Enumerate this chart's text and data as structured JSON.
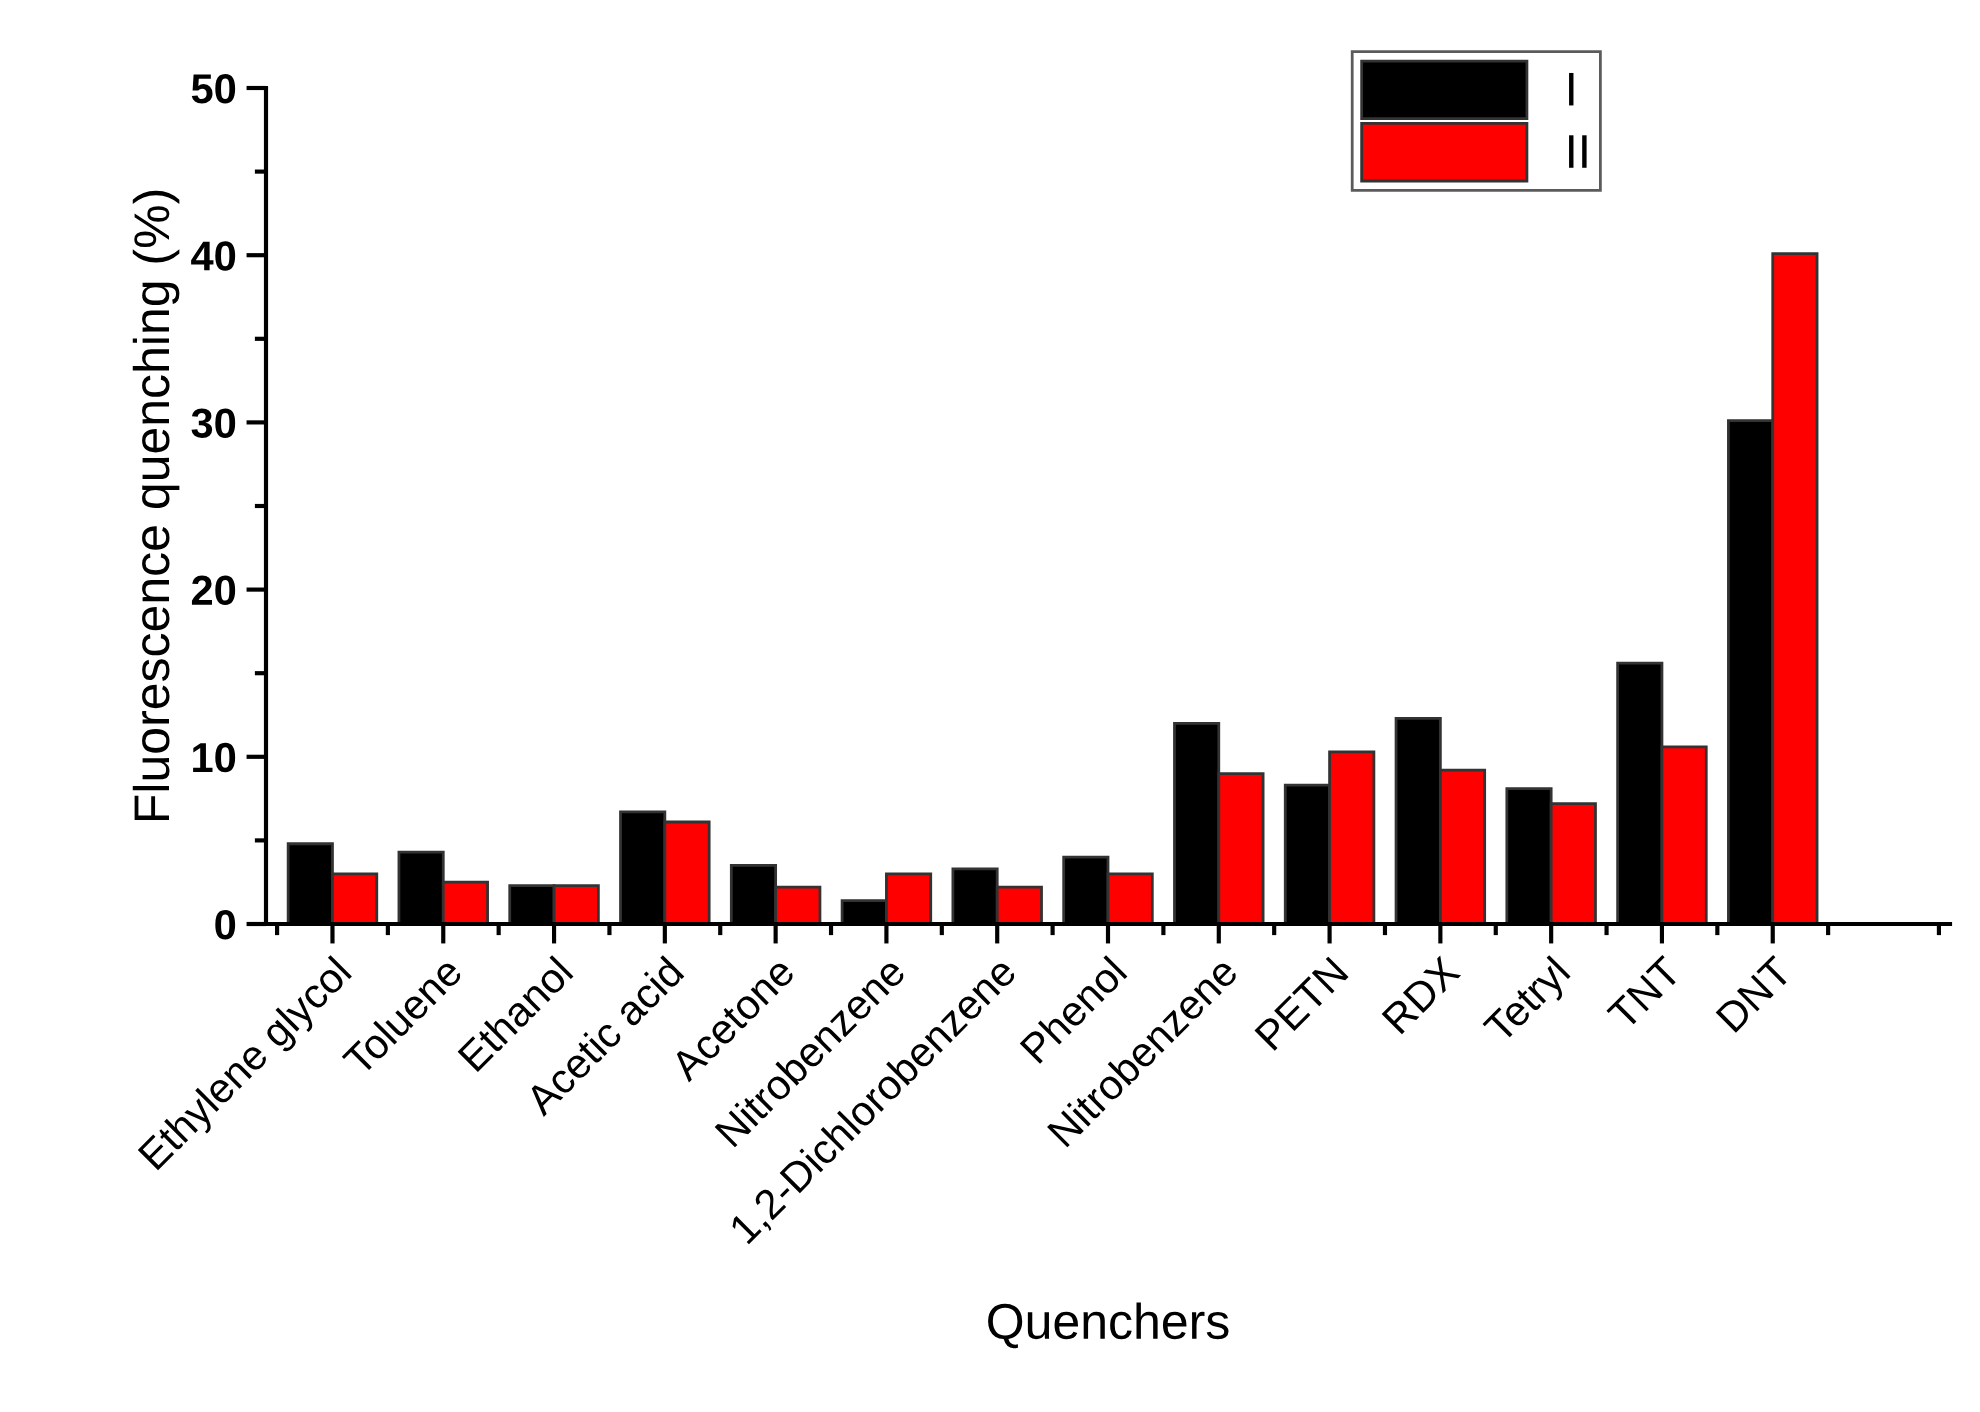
{
  "chart_data": {
    "type": "bar",
    "xlabel": "Quenchers",
    "ylabel": "Fluorescence quenching (%)",
    "categories": [
      "Ethylene glycol",
      "Toluene",
      "Ethanol",
      "Acetic acid",
      "Acetone",
      "Nitrobenzene",
      "1,2-Dichlorobenzene",
      "Phenol",
      "Nitrobenzene",
      "PETN",
      "RDX",
      "Tetryl",
      "TNT",
      "DNT"
    ],
    "series": [
      {
        "name": "I",
        "color": "#000000",
        "values": [
          4.8,
          4.3,
          2.3,
          6.7,
          3.5,
          1.4,
          3.3,
          4.0,
          12.0,
          8.3,
          12.3,
          8.1,
          15.6,
          30.1
        ]
      },
      {
        "name": "II",
        "color": "#ff0000",
        "values": [
          3.0,
          2.5,
          2.3,
          6.1,
          2.2,
          3.0,
          2.2,
          3.0,
          9.0,
          10.3,
          9.2,
          7.2,
          10.6,
          40.1
        ]
      }
    ],
    "ylim": [
      0,
      50
    ],
    "yticks": [
      0,
      10,
      20,
      30,
      40,
      50
    ],
    "legend": "top right",
    "grid": false
  }
}
